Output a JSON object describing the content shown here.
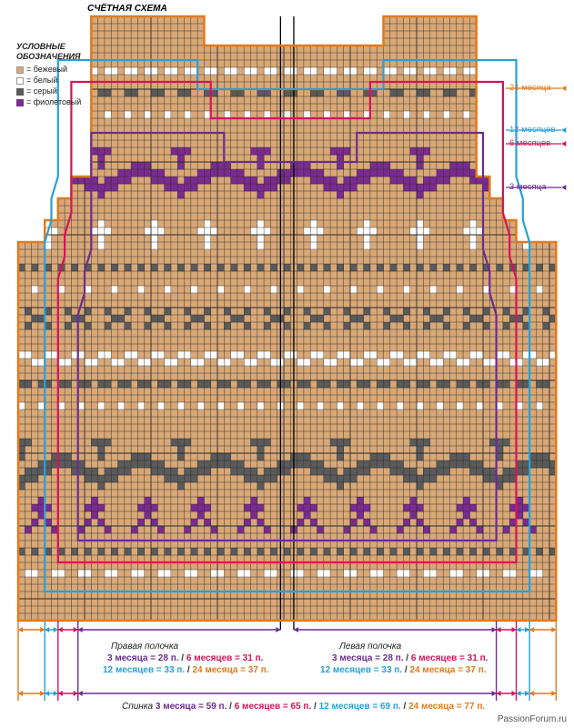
{
  "header": {
    "title": "СЧЁТНАЯ СХЕМА"
  },
  "legend": {
    "title_line1": "УСЛОВНЫЕ",
    "title_line2": "ОБОЗНАЧЕНИЯ",
    "items": [
      {
        "label": "= бежевый",
        "color": "#d9a877"
      },
      {
        "label": "= белый",
        "color": "#ffffff"
      },
      {
        "label": "= серый",
        "color": "#5a5a5a"
      },
      {
        "label": "= фиолетовый",
        "color": "#7a2b8f"
      }
    ]
  },
  "size_labels": [
    {
      "text": "24 месяца",
      "color": "#e07a1f"
    },
    {
      "text": "12 месяцев",
      "color": "#2a9fd6"
    },
    {
      "text": "6 месяцев",
      "color": "#d4145a"
    },
    {
      "text": "3 месяца",
      "color": "#6b2c91"
    }
  ],
  "right_front": {
    "title": "Правая полочка",
    "line1_a": "3 месяца = 28 п.",
    "line1_b": "6 месяцев = 31 п.",
    "line2_a": "12 месяцев = 33 п.",
    "line2_b": "24 месяца = 37 п."
  },
  "left_front": {
    "title": "Левая полочка",
    "line1_a": "3 месяца = 28 п.",
    "line1_b": "6 месяцев = 31 п.",
    "line2_a": "12 месяцев = 33 п.",
    "line2_b": "24 месяца = 37 п."
  },
  "back": {
    "title": "Спинка",
    "a": "3 месяца = 59 п.",
    "b": "6 месяцев = 65 п.",
    "c": "12 месяцев = 69 п.",
    "d": "24 месяца = 77 п."
  },
  "colors": {
    "beige": "#d9a877",
    "white": "#ffffff",
    "gray": "#5a5a5a",
    "purple": "#7a2b8f",
    "orange": "#e07a1f",
    "blue": "#2a9fd6",
    "magenta": "#d4145a",
    "violet": "#6b2c91"
  },
  "watermark": "PassionForum.ru"
}
